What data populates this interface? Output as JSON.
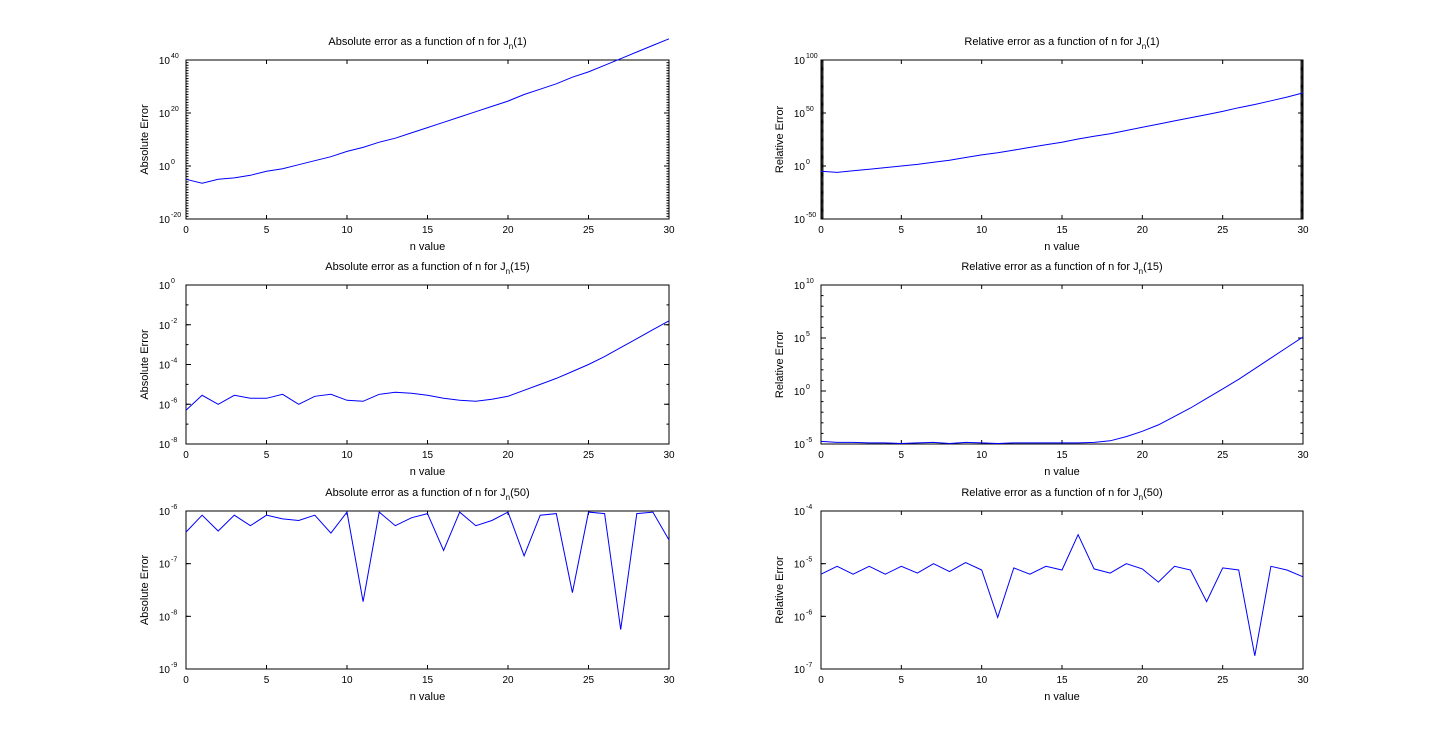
{
  "chart_data": [
    {
      "type": "line",
      "title": "Absolute error as a function of n for J",
      "title_sub": "n",
      "title_arg": "(1)",
      "xlabel": "n value",
      "ylabel": "Absolute Error",
      "yscale": "log",
      "xlim": [
        0,
        30
      ],
      "ylim_exp": [
        -20,
        40
      ],
      "x_ticks": [
        0,
        5,
        10,
        15,
        20,
        25,
        30
      ],
      "y_ticks": [
        {
          "base": "10",
          "exp": "-20"
        },
        {
          "base": "10",
          "exp": "0"
        },
        {
          "base": "10",
          "exp": "20"
        },
        {
          "base": "10",
          "exp": "40"
        }
      ],
      "line_color": "#0000ff",
      "x": [
        0,
        1,
        2,
        3,
        4,
        5,
        6,
        7,
        8,
        9,
        10,
        11,
        12,
        13,
        14,
        15,
        16,
        17,
        18,
        19,
        20,
        21,
        22,
        23,
        24,
        25,
        26,
        27,
        28,
        29,
        30
      ],
      "log10_values": [
        -5,
        -6.5,
        -5,
        -4.5,
        -3.5,
        -2,
        -1,
        0.5,
        2,
        3.5,
        5.5,
        7,
        9,
        10.5,
        12.5,
        14.5,
        16.5,
        18.5,
        20.5,
        22.5,
        24.5,
        27,
        29,
        31,
        33.5,
        35.5,
        38,
        40.5,
        43,
        45.5,
        48
      ]
    },
    {
      "type": "line",
      "title": "Relative error as a function of n for J",
      "title_sub": "n",
      "title_arg": "(1)",
      "xlabel": "n value",
      "ylabel": "Relative Error",
      "yscale": "log",
      "xlim": [
        0,
        30
      ],
      "ylim_exp": [
        -50,
        100
      ],
      "x_ticks": [
        0,
        5,
        10,
        15,
        20,
        25,
        30
      ],
      "y_ticks": [
        {
          "base": "10",
          "exp": "-50"
        },
        {
          "base": "10",
          "exp": "0"
        },
        {
          "base": "10",
          "exp": "50"
        },
        {
          "base": "10",
          "exp": "100"
        }
      ],
      "line_color": "#0000ff",
      "x": [
        0,
        1,
        2,
        3,
        4,
        5,
        6,
        7,
        8,
        9,
        10,
        11,
        12,
        13,
        14,
        15,
        16,
        17,
        18,
        19,
        20,
        21,
        22,
        23,
        24,
        25,
        26,
        27,
        28,
        29,
        30
      ],
      "log10_values": [
        -5,
        -6,
        -4.5,
        -3,
        -1.5,
        0,
        1.5,
        3.5,
        5.5,
        8,
        10.5,
        12.5,
        15,
        17.5,
        20,
        22.5,
        25.5,
        28,
        30.5,
        33.5,
        36.5,
        39.5,
        42.5,
        45.5,
        48.5,
        51.5,
        55,
        58,
        61.5,
        65,
        69
      ]
    },
    {
      "type": "line",
      "title": "Absolute error as a function of n for J",
      "title_sub": "n",
      "title_arg": "(15)",
      "xlabel": "n value",
      "ylabel": "Absolute Error",
      "yscale": "log",
      "xlim": [
        0,
        30
      ],
      "ylim_exp": [
        -8,
        0
      ],
      "x_ticks": [
        0,
        5,
        10,
        15,
        20,
        25,
        30
      ],
      "y_ticks": [
        {
          "base": "10",
          "exp": "-8"
        },
        {
          "base": "10",
          "exp": "-6"
        },
        {
          "base": "10",
          "exp": "-4"
        },
        {
          "base": "10",
          "exp": "-2"
        },
        {
          "base": "10",
          "exp": "0"
        }
      ],
      "line_color": "#0000ff",
      "x": [
        0,
        1,
        2,
        3,
        4,
        5,
        6,
        7,
        8,
        9,
        10,
        11,
        12,
        13,
        14,
        15,
        16,
        17,
        18,
        19,
        20,
        21,
        22,
        23,
        24,
        25,
        26,
        27,
        28,
        29,
        30
      ],
      "log10_values": [
        -6.3,
        -5.55,
        -6.0,
        -5.55,
        -5.7,
        -5.7,
        -5.5,
        -6.0,
        -5.6,
        -5.5,
        -5.8,
        -5.85,
        -5.5,
        -5.4,
        -5.45,
        -5.55,
        -5.7,
        -5.8,
        -5.85,
        -5.75,
        -5.6,
        -5.3,
        -5.0,
        -4.7,
        -4.35,
        -4.0,
        -3.6,
        -3.15,
        -2.7,
        -2.25,
        -1.8
      ]
    },
    {
      "type": "line",
      "title": "Relative error as a function of n for J",
      "title_sub": "n",
      "title_arg": "(15)",
      "xlabel": "n value",
      "ylabel": "Relative Error",
      "yscale": "log",
      "xlim": [
        0,
        30
      ],
      "ylim_exp": [
        -5,
        10
      ],
      "x_ticks": [
        0,
        5,
        10,
        15,
        20,
        25,
        30
      ],
      "y_ticks": [
        {
          "base": "10",
          "exp": "-5"
        },
        {
          "base": "10",
          "exp": "0"
        },
        {
          "base": "10",
          "exp": "5"
        },
        {
          "base": "10",
          "exp": "10"
        }
      ],
      "line_color": "#0000ff",
      "x": [
        0,
        1,
        2,
        3,
        4,
        5,
        6,
        7,
        8,
        9,
        10,
        11,
        12,
        13,
        14,
        15,
        16,
        17,
        18,
        19,
        20,
        21,
        22,
        23,
        24,
        25,
        26,
        27,
        28,
        29,
        30
      ],
      "log10_values": [
        -4.75,
        -4.85,
        -4.85,
        -4.9,
        -4.9,
        -4.95,
        -4.9,
        -4.85,
        -4.95,
        -4.85,
        -4.9,
        -4.95,
        -4.9,
        -4.9,
        -4.9,
        -4.9,
        -4.9,
        -4.85,
        -4.7,
        -4.3,
        -3.8,
        -3.2,
        -2.4,
        -1.6,
        -0.7,
        0.2,
        1.1,
        2.1,
        3.1,
        4.1,
        5.1
      ]
    },
    {
      "type": "line",
      "title": "Absolute error as a function of n for J",
      "title_sub": "n",
      "title_arg": "(50)",
      "xlabel": "n value",
      "ylabel": "Absolute Error",
      "yscale": "log",
      "xlim": [
        0,
        30
      ],
      "ylim_exp": [
        -9,
        -6
      ],
      "x_ticks": [
        0,
        5,
        10,
        15,
        20,
        25,
        30
      ],
      "y_ticks": [
        {
          "base": "10",
          "exp": "-9"
        },
        {
          "base": "10",
          "exp": "-8"
        },
        {
          "base": "10",
          "exp": "-7"
        },
        {
          "base": "10",
          "exp": "-6"
        }
      ],
      "y_ticks_raw_labels": [
        "10⁻⁹",
        "10⁻⁸",
        "10⁻⁷",
        "10⁻⁶"
      ],
      "line_color": "#0000ff",
      "x": [
        0,
        1,
        2,
        3,
        4,
        5,
        6,
        7,
        8,
        9,
        10,
        11,
        12,
        13,
        14,
        15,
        16,
        17,
        18,
        19,
        20,
        21,
        22,
        23,
        24,
        25,
        26,
        27,
        28,
        29,
        30
      ],
      "log10_values": [
        -6.4,
        -6.08,
        -6.38,
        -6.08,
        -6.28,
        -6.08,
        -6.15,
        -6.18,
        -6.08,
        -6.42,
        -6.02,
        -7.72,
        -6.02,
        -6.28,
        -6.13,
        -6.05,
        -6.75,
        -6.02,
        -6.28,
        -6.18,
        -6.02,
        -6.85,
        -6.08,
        -6.05,
        -7.55,
        -6.02,
        -6.05,
        -8.25,
        -6.05,
        -6.02,
        -6.55
      ]
    },
    {
      "type": "line",
      "title": "Relative error as a function of n for J",
      "title_sub": "n",
      "title_arg": "(50)",
      "xlabel": "n value",
      "ylabel": "Relative Error",
      "yscale": "log",
      "xlim": [
        0,
        30
      ],
      "ylim_exp": [
        -7,
        -4
      ],
      "x_ticks": [
        0,
        5,
        10,
        15,
        20,
        25,
        30
      ],
      "y_ticks": [
        {
          "base": "10",
          "exp": "-7"
        },
        {
          "base": "10",
          "exp": "-6"
        },
        {
          "base": "10",
          "exp": "-5"
        },
        {
          "base": "10",
          "exp": "-4"
        }
      ],
      "line_color": "#0000ff",
      "x": [
        0,
        1,
        2,
        3,
        4,
        5,
        6,
        7,
        8,
        9,
        10,
        11,
        12,
        13,
        14,
        15,
        16,
        17,
        18,
        19,
        20,
        21,
        22,
        23,
        24,
        25,
        26,
        27,
        28,
        29,
        30
      ],
      "log10_values": [
        -5.2,
        -5.05,
        -5.2,
        -5.05,
        -5.2,
        -5.05,
        -5.18,
        -5.0,
        -5.15,
        -4.98,
        -5.12,
        -6.02,
        -5.08,
        -5.2,
        -5.05,
        -5.12,
        -4.45,
        -5.1,
        -5.18,
        -5.0,
        -5.1,
        -5.35,
        -5.05,
        -5.12,
        -5.72,
        -5.08,
        -5.12,
        -6.75,
        -5.05,
        -5.12,
        -5.25
      ]
    }
  ]
}
